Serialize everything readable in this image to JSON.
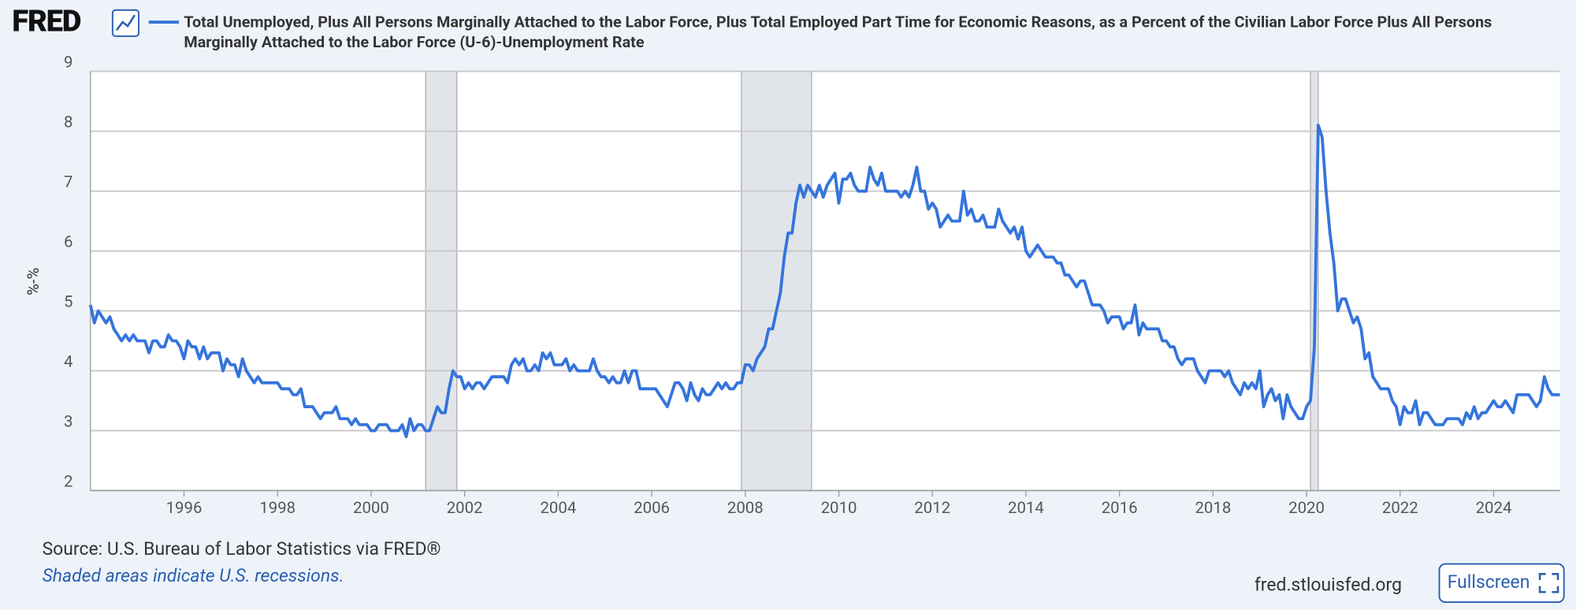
{
  "logo": "FRED",
  "chart_data": {
    "type": "line",
    "title": "Total Unemployed, Plus All Persons Marginally Attached to the Labor Force, Plus Total Employed Part Time for Economic Reasons, as a Percent of the Civilian Labor Force Plus All Persons Marginally Attached to the Labor Force (U-6)-Unemployment Rate",
    "y_label": "%-%",
    "source": "Source: U.S. Bureau of Labor Statistics via FRED®",
    "note": "Shaded areas indicate U.S. recessions.",
    "site": "fred.stlouisfed.org",
    "button": "Fullscreen",
    "xlim": [
      "1994-01",
      "2025-06"
    ],
    "xticks": [
      1996,
      1998,
      2000,
      2002,
      2004,
      2006,
      2008,
      2010,
      2012,
      2014,
      2016,
      2018,
      2020,
      2022,
      2024
    ],
    "ylim": [
      2,
      9
    ],
    "yticks": [
      2,
      3,
      4,
      5,
      6,
      7,
      8,
      9
    ],
    "grid": true,
    "recessions": [
      [
        "2001-03",
        "2001-11"
      ],
      [
        "2007-12",
        "2009-06"
      ],
      [
        "2020-02",
        "2020-04"
      ]
    ],
    "x": [
      "1994-01",
      "1994-02",
      "1994-03",
      "1994-04",
      "1994-05",
      "1994-06",
      "1994-07",
      "1994-08",
      "1994-09",
      "1994-10",
      "1994-11",
      "1994-12",
      "1995-01",
      "1995-02",
      "1995-03",
      "1995-04",
      "1995-05",
      "1995-06",
      "1995-07",
      "1995-08",
      "1995-09",
      "1995-10",
      "1995-11",
      "1995-12",
      "1996-01",
      "1996-02",
      "1996-03",
      "1996-04",
      "1996-05",
      "1996-06",
      "1996-07",
      "1996-08",
      "1996-09",
      "1996-10",
      "1996-11",
      "1996-12",
      "1997-01",
      "1997-02",
      "1997-03",
      "1997-04",
      "1997-05",
      "1997-06",
      "1997-07",
      "1997-08",
      "1997-09",
      "1997-10",
      "1997-11",
      "1997-12",
      "1998-01",
      "1998-02",
      "1998-03",
      "1998-04",
      "1998-05",
      "1998-06",
      "1998-07",
      "1998-08",
      "1998-09",
      "1998-10",
      "1998-11",
      "1998-12",
      "1999-01",
      "1999-02",
      "1999-03",
      "1999-04",
      "1999-05",
      "1999-06",
      "1999-07",
      "1999-08",
      "1999-09",
      "1999-10",
      "1999-11",
      "1999-12",
      "2000-01",
      "2000-02",
      "2000-03",
      "2000-04",
      "2000-05",
      "2000-06",
      "2000-07",
      "2000-08",
      "2000-09",
      "2000-10",
      "2000-11",
      "2000-12",
      "2001-01",
      "2001-02",
      "2001-03",
      "2001-04",
      "2001-05",
      "2001-06",
      "2001-07",
      "2001-08",
      "2001-09",
      "2001-10",
      "2001-11",
      "2001-12",
      "2002-01",
      "2002-02",
      "2002-03",
      "2002-04",
      "2002-05",
      "2002-06",
      "2002-07",
      "2002-08",
      "2002-09",
      "2002-10",
      "2002-11",
      "2002-12",
      "2003-01",
      "2003-02",
      "2003-03",
      "2003-04",
      "2003-05",
      "2003-06",
      "2003-07",
      "2003-08",
      "2003-09",
      "2003-10",
      "2003-11",
      "2003-12",
      "2004-01",
      "2004-02",
      "2004-03",
      "2004-04",
      "2004-05",
      "2004-06",
      "2004-07",
      "2004-08",
      "2004-09",
      "2004-10",
      "2004-11",
      "2004-12",
      "2005-01",
      "2005-02",
      "2005-03",
      "2005-04",
      "2005-05",
      "2005-06",
      "2005-07",
      "2005-08",
      "2005-09",
      "2005-10",
      "2005-11",
      "2005-12",
      "2006-01",
      "2006-02",
      "2006-03",
      "2006-04",
      "2006-05",
      "2006-06",
      "2006-07",
      "2006-08",
      "2006-09",
      "2006-10",
      "2006-11",
      "2006-12",
      "2007-01",
      "2007-02",
      "2007-03",
      "2007-04",
      "2007-05",
      "2007-06",
      "2007-07",
      "2007-08",
      "2007-09",
      "2007-10",
      "2007-11",
      "2007-12",
      "2008-01",
      "2008-02",
      "2008-03",
      "2008-04",
      "2008-05",
      "2008-06",
      "2008-07",
      "2008-08",
      "2008-09",
      "2008-10",
      "2008-11",
      "2008-12",
      "2009-01",
      "2009-02",
      "2009-03",
      "2009-04",
      "2009-05",
      "2009-06",
      "2009-07",
      "2009-08",
      "2009-09",
      "2009-10",
      "2009-11",
      "2009-12",
      "2010-01",
      "2010-02",
      "2010-03",
      "2010-04",
      "2010-05",
      "2010-06",
      "2010-07",
      "2010-08",
      "2010-09",
      "2010-10",
      "2010-11",
      "2010-12",
      "2011-01",
      "2011-02",
      "2011-03",
      "2011-04",
      "2011-05",
      "2011-06",
      "2011-07",
      "2011-08",
      "2011-09",
      "2011-10",
      "2011-11",
      "2011-12",
      "2012-01",
      "2012-02",
      "2012-03",
      "2012-04",
      "2012-05",
      "2012-06",
      "2012-07",
      "2012-08",
      "2012-09",
      "2012-10",
      "2012-11",
      "2012-12",
      "2013-01",
      "2013-02",
      "2013-03",
      "2013-04",
      "2013-05",
      "2013-06",
      "2013-07",
      "2013-08",
      "2013-09",
      "2013-10",
      "2013-11",
      "2013-12",
      "2014-01",
      "2014-02",
      "2014-03",
      "2014-04",
      "2014-05",
      "2014-06",
      "2014-07",
      "2014-08",
      "2014-09",
      "2014-10",
      "2014-11",
      "2014-12",
      "2015-01",
      "2015-02",
      "2015-03",
      "2015-04",
      "2015-05",
      "2015-06",
      "2015-07",
      "2015-08",
      "2015-09",
      "2015-10",
      "2015-11",
      "2015-12",
      "2016-01",
      "2016-02",
      "2016-03",
      "2016-04",
      "2016-05",
      "2016-06",
      "2016-07",
      "2016-08",
      "2016-09",
      "2016-10",
      "2016-11",
      "2016-12",
      "2017-01",
      "2017-02",
      "2017-03",
      "2017-04",
      "2017-05",
      "2017-06",
      "2017-07",
      "2017-08",
      "2017-09",
      "2017-10",
      "2017-11",
      "2017-12",
      "2018-01",
      "2018-02",
      "2018-03",
      "2018-04",
      "2018-05",
      "2018-06",
      "2018-07",
      "2018-08",
      "2018-09",
      "2018-10",
      "2018-11",
      "2018-12",
      "2019-01",
      "2019-02",
      "2019-03",
      "2019-04",
      "2019-05",
      "2019-06",
      "2019-07",
      "2019-08",
      "2019-09",
      "2019-10",
      "2019-11",
      "2019-12",
      "2020-01",
      "2020-02",
      "2020-03",
      "2020-04",
      "2020-05",
      "2020-06",
      "2020-07",
      "2020-08",
      "2020-09",
      "2020-10",
      "2020-11",
      "2020-12",
      "2021-01",
      "2021-02",
      "2021-03",
      "2021-04",
      "2021-05",
      "2021-06",
      "2021-07",
      "2021-08",
      "2021-09",
      "2021-10",
      "2021-11",
      "2021-12",
      "2022-01",
      "2022-02",
      "2022-03",
      "2022-04",
      "2022-05",
      "2022-06",
      "2022-07",
      "2022-08",
      "2022-09",
      "2022-10",
      "2022-11",
      "2022-12",
      "2023-01",
      "2023-02",
      "2023-03",
      "2023-04",
      "2023-05",
      "2023-06",
      "2023-07",
      "2023-08",
      "2023-09",
      "2023-10",
      "2023-11",
      "2023-12",
      "2024-01",
      "2024-02",
      "2024-03",
      "2024-04",
      "2024-05",
      "2024-06",
      "2024-07",
      "2024-08",
      "2024-09",
      "2024-10",
      "2024-11",
      "2024-12",
      "2025-01",
      "2025-02",
      "2025-03",
      "2025-04",
      "2025-05",
      "2025-06"
    ],
    "series": [
      {
        "name": "Total Unemployed, Plus All Persons Marginally Attached to the Labor Force, Plus Total Employed Part Time for Economic Reasons, as a Percent of the Civilian Labor Force Plus All Persons Marginally Attached to the Labor Force (U-6)-Unemployment Rate",
        "color": "#3474dc",
        "values": [
          5.1,
          4.8,
          5.0,
          4.9,
          4.8,
          4.9,
          4.7,
          4.6,
          4.5,
          4.6,
          4.5,
          4.6,
          4.5,
          4.5,
          4.5,
          4.3,
          4.5,
          4.5,
          4.4,
          4.4,
          4.6,
          4.5,
          4.5,
          4.4,
          4.2,
          4.5,
          4.4,
          4.4,
          4.2,
          4.4,
          4.2,
          4.3,
          4.3,
          4.3,
          4.0,
          4.2,
          4.1,
          4.1,
          3.9,
          4.2,
          4.0,
          3.9,
          3.8,
          3.9,
          3.8,
          3.8,
          3.8,
          3.8,
          3.8,
          3.7,
          3.7,
          3.7,
          3.6,
          3.6,
          3.7,
          3.4,
          3.4,
          3.4,
          3.3,
          3.2,
          3.3,
          3.3,
          3.3,
          3.4,
          3.2,
          3.2,
          3.2,
          3.1,
          3.2,
          3.1,
          3.1,
          3.1,
          3.0,
          3.0,
          3.1,
          3.1,
          3.1,
          3.0,
          3.0,
          3.0,
          3.1,
          2.9,
          3.2,
          3.0,
          3.1,
          3.1,
          3.0,
          3.0,
          3.2,
          3.4,
          3.3,
          3.3,
          3.7,
          4.0,
          3.9,
          3.9,
          3.7,
          3.8,
          3.7,
          3.8,
          3.8,
          3.7,
          3.8,
          3.9,
          3.9,
          3.9,
          3.9,
          3.8,
          4.1,
          4.2,
          4.1,
          4.2,
          4.0,
          4.0,
          4.1,
          4.0,
          4.3,
          4.2,
          4.3,
          4.1,
          4.1,
          4.1,
          4.2,
          4.0,
          4.1,
          4.0,
          4.0,
          4.0,
          4.0,
          4.2,
          4.0,
          3.9,
          3.9,
          3.8,
          3.9,
          3.8,
          3.8,
          4.0,
          3.8,
          4.0,
          4.0,
          3.7,
          3.7,
          3.7,
          3.7,
          3.7,
          3.6,
          3.5,
          3.4,
          3.6,
          3.8,
          3.8,
          3.7,
          3.5,
          3.8,
          3.6,
          3.5,
          3.7,
          3.6,
          3.6,
          3.7,
          3.8,
          3.7,
          3.8,
          3.7,
          3.7,
          3.8,
          3.8,
          4.1,
          4.1,
          4.0,
          4.2,
          4.3,
          4.4,
          4.7,
          4.7,
          5.0,
          5.3,
          5.9,
          6.3,
          6.3,
          6.8,
          7.1,
          6.9,
          7.1,
          7.0,
          6.9,
          7.1,
          6.9,
          7.1,
          7.2,
          7.3,
          6.8,
          7.2,
          7.2,
          7.3,
          7.1,
          7.0,
          7.0,
          7.0,
          7.4,
          7.2,
          7.1,
          7.3,
          7.0,
          7.0,
          7.0,
          7.0,
          6.9,
          7.0,
          6.9,
          7.1,
          7.4,
          7.0,
          7.0,
          6.7,
          6.8,
          6.7,
          6.4,
          6.5,
          6.6,
          6.5,
          6.5,
          6.5,
          7.0,
          6.6,
          6.7,
          6.5,
          6.5,
          6.6,
          6.4,
          6.4,
          6.4,
          6.7,
          6.5,
          6.4,
          6.3,
          6.4,
          6.2,
          6.4,
          6.0,
          5.9,
          6.0,
          6.1,
          6.0,
          5.9,
          5.9,
          5.9,
          5.8,
          5.8,
          5.6,
          5.6,
          5.5,
          5.4,
          5.5,
          5.5,
          5.3,
          5.1,
          5.1,
          5.1,
          5.0,
          4.8,
          4.9,
          4.9,
          4.9,
          4.7,
          4.8,
          4.8,
          5.1,
          4.6,
          4.8,
          4.7,
          4.7,
          4.7,
          4.7,
          4.5,
          4.5,
          4.4,
          4.4,
          4.2,
          4.1,
          4.2,
          4.2,
          4.2,
          4.0,
          3.9,
          3.8,
          4.0,
          4.0,
          4.0,
          4.0,
          3.9,
          4.0,
          3.8,
          3.7,
          3.6,
          3.8,
          3.7,
          3.8,
          3.7,
          4.0,
          3.4,
          3.6,
          3.7,
          3.5,
          3.6,
          3.2,
          3.6,
          3.4,
          3.3,
          3.2,
          3.2,
          3.4,
          3.5,
          4.4,
          8.1,
          7.9,
          7.0,
          6.3,
          5.8,
          5.0,
          5.2,
          5.2,
          5.0,
          4.8,
          4.9,
          4.7,
          4.2,
          4.3,
          3.9,
          3.8,
          3.7,
          3.7,
          3.7,
          3.5,
          3.4,
          3.1,
          3.4,
          3.3,
          3.3,
          3.5,
          3.1,
          3.3,
          3.3,
          3.2,
          3.1,
          3.1,
          3.1,
          3.2,
          3.2,
          3.2,
          3.2,
          3.1,
          3.3,
          3.2,
          3.4,
          3.2,
          3.3,
          3.3,
          3.4,
          3.5,
          3.4,
          3.4,
          3.5,
          3.4,
          3.3,
          3.6,
          3.6,
          3.6,
          3.6,
          3.5,
          3.4,
          3.5,
          3.9,
          3.7,
          3.6,
          3.6,
          3.6
        ]
      }
    ]
  }
}
